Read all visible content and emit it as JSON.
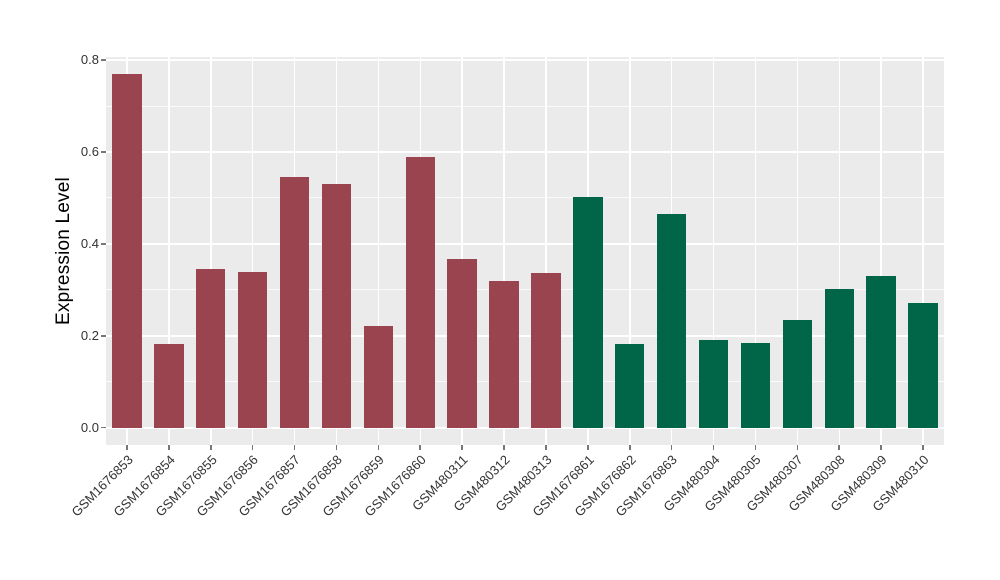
{
  "chart_data": {
    "type": "bar",
    "title": "",
    "ylabel": "Expression Level",
    "xlabel": "",
    "categories": [
      "GSM1676853",
      "GSM1676854",
      "GSM1676855",
      "GSM1676856",
      "GSM1676857",
      "GSM1676858",
      "GSM1676859",
      "GSM1676860",
      "GSM480311",
      "GSM480312",
      "GSM480313",
      "GSM1676861",
      "GSM1676862",
      "GSM1676863",
      "GSM480304",
      "GSM480305",
      "GSM480307",
      "GSM480308",
      "GSM480309",
      "GSM480310"
    ],
    "values": [
      0.769,
      0.183,
      0.346,
      0.338,
      0.546,
      0.53,
      0.222,
      0.59,
      0.366,
      0.319,
      0.337,
      0.502,
      0.181,
      0.465,
      0.19,
      0.185,
      0.235,
      0.302,
      0.331,
      0.272
    ],
    "bar_colors": [
      "#9A4450",
      "#9A4450",
      "#9A4450",
      "#9A4450",
      "#9A4450",
      "#9A4450",
      "#9A4450",
      "#9A4450",
      "#9A4450",
      "#9A4450",
      "#9A4450",
      "#006647",
      "#006647",
      "#006647",
      "#006647",
      "#006647",
      "#006647",
      "#006647",
      "#006647",
      "#006647"
    ],
    "group_colors": {
      "left_group_red": "#9A4450",
      "right_group_green": "#006647"
    },
    "ytick_labels": [
      "0.0",
      "0.2",
      "0.4",
      "0.6",
      "0.8"
    ],
    "ytick_values": [
      0,
      0.2,
      0.4,
      0.6,
      0.8
    ],
    "ytick_minor_values": [
      0.1,
      0.3,
      0.5,
      0.7
    ],
    "ylim": [
      -0.038,
      0.807
    ],
    "grid": "on",
    "legend": "none",
    "panel_background": "#EBEBEB",
    "grid_color": "#FFFFFF",
    "tick_text_color": "#333333",
    "x_tick_rotation_deg": 45
  }
}
